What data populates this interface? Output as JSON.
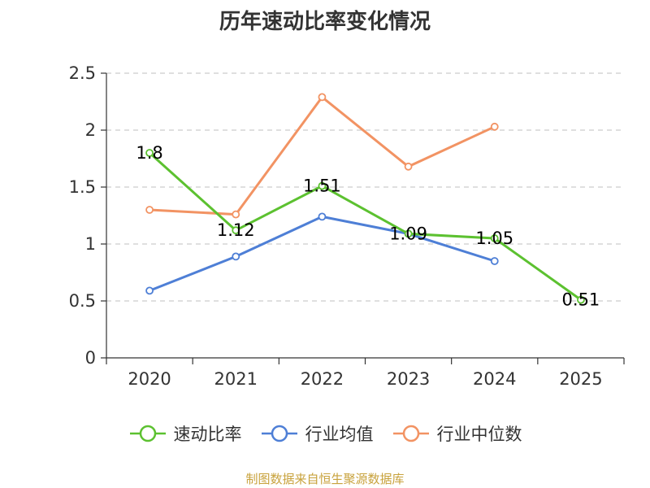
{
  "chart_data": {
    "type": "line",
    "title": "历年速动比率变化情况",
    "categories": [
      "2020",
      "2021",
      "2022",
      "2023",
      "2024",
      "2025"
    ],
    "ylim": [
      0,
      2.5
    ],
    "yticks": [
      "0",
      "0.5",
      "1",
      "1.5",
      "2",
      "2.5"
    ],
    "ytick_values": [
      0,
      0.5,
      1,
      1.5,
      2,
      2.5
    ],
    "grid": true,
    "legend_position": "bottom",
    "series": [
      {
        "name": "速动比率",
        "color": "#5cc130",
        "values": [
          1.8,
          1.12,
          1.51,
          1.09,
          1.05,
          0.51
        ],
        "labels": [
          "1.8",
          "1.12",
          "1.51",
          "1.09",
          "1.05",
          "0.51"
        ]
      },
      {
        "name": "行业均值",
        "color": "#4e7fd6",
        "values": [
          0.59,
          0.89,
          1.24,
          1.09,
          0.85,
          null
        ]
      },
      {
        "name": "行业中位数",
        "color": "#f29363",
        "values": [
          1.3,
          1.26,
          2.29,
          1.68,
          2.03,
          null
        ]
      }
    ]
  },
  "source_text": "制图数据来自恒生聚源数据库"
}
